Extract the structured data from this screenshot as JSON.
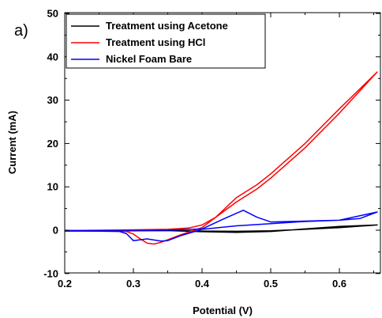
{
  "chart_data": {
    "type": "line",
    "panel_label": "a)",
    "xlabel": "Potential (V)",
    "ylabel": "Current (mA)",
    "xlim": [
      0.2,
      0.655
    ],
    "ylim": [
      -10,
      50
    ],
    "xticks": [
      0.2,
      0.3,
      0.4,
      0.5,
      0.6
    ],
    "xtick_labels": [
      "0.2",
      "0.3",
      "0.4",
      "0.5",
      "0.6"
    ],
    "yticks": [
      -10,
      0,
      10,
      20,
      30,
      40,
      50
    ],
    "ytick_labels": [
      "-10",
      "0",
      "10",
      "20",
      "30",
      "40",
      "50"
    ],
    "grid": false,
    "legend_position": "top-left",
    "series": [
      {
        "name": "Treatment using Acetone",
        "color": "#000000",
        "x": [
          0.2,
          0.3,
          0.35,
          0.4,
          0.45,
          0.5,
          0.55,
          0.6,
          0.655,
          0.6,
          0.55,
          0.5,
          0.45,
          0.4,
          0.35,
          0.3,
          0.2
        ],
        "y": [
          -0.2,
          -0.15,
          -0.1,
          -0.2,
          -0.25,
          -0.15,
          0.2,
          0.6,
          1.2,
          0.85,
          0.3,
          -0.3,
          -0.5,
          -0.35,
          -0.1,
          -0.1,
          -0.2
        ]
      },
      {
        "name": "Treatment using HCl",
        "color": "#ff0000",
        "x": [
          0.2,
          0.3,
          0.35,
          0.38,
          0.4,
          0.42,
          0.45,
          0.48,
          0.5,
          0.55,
          0.6,
          0.655,
          0.6,
          0.55,
          0.5,
          0.48,
          0.45,
          0.42,
          0.4,
          0.37,
          0.35,
          0.34,
          0.33,
          0.32,
          0.31,
          0.3,
          0.29,
          0.28,
          0.2
        ],
        "y": [
          -0.1,
          0.1,
          0.2,
          0.5,
          1.2,
          3.0,
          6.5,
          9.5,
          12.0,
          19.0,
          27.0,
          36.5,
          28.0,
          20.0,
          13.0,
          10.5,
          7.5,
          3.0,
          0.6,
          -1.0,
          -2.2,
          -2.8,
          -3.2,
          -3.0,
          -2.0,
          -0.9,
          -0.3,
          -0.2,
          -0.1
        ]
      },
      {
        "name": "Nickel Foam Bare",
        "color": "#0000ff",
        "x": [
          0.2,
          0.3,
          0.35,
          0.4,
          0.43,
          0.46,
          0.48,
          0.5,
          0.55,
          0.6,
          0.63,
          0.655,
          0.6,
          0.55,
          0.5,
          0.45,
          0.4,
          0.37,
          0.35,
          0.34,
          0.32,
          0.3,
          0.29,
          0.28,
          0.2
        ],
        "y": [
          -0.1,
          -0.1,
          0.0,
          0.3,
          2.5,
          4.6,
          3.0,
          1.9,
          2.1,
          2.3,
          2.7,
          4.2,
          2.3,
          2.0,
          1.5,
          1.0,
          0.2,
          -1.2,
          -2.4,
          -2.5,
          -2.0,
          -2.4,
          -0.8,
          -0.3,
          -0.1
        ]
      }
    ]
  }
}
